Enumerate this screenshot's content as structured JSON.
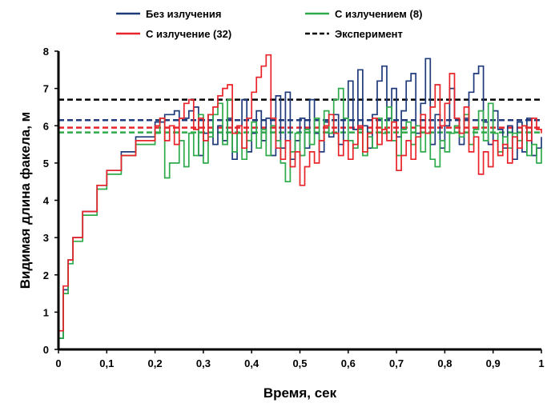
{
  "chart_data": {
    "type": "line",
    "title": "",
    "xlabel": "Время, сек",
    "ylabel": "Видимая длина факела, м",
    "xlim": [
      0,
      1
    ],
    "ylim": [
      0,
      8
    ],
    "xticks": [
      "0",
      "0,1",
      "0,2",
      "0,3",
      "0,4",
      "0,5",
      "0,6",
      "0,7",
      "0,8",
      "0,9",
      "1"
    ],
    "yticks": [
      "0",
      "1",
      "2",
      "3",
      "4",
      "5",
      "6",
      "7",
      "8"
    ],
    "grid": false,
    "legend_position": "top",
    "series": [
      {
        "name": "Без излучения",
        "color": "#1f3a7a",
        "style": "solid",
        "x": [
          0.0,
          0.01,
          0.02,
          0.03,
          0.05,
          0.08,
          0.1,
          0.13,
          0.16,
          0.2,
          0.22,
          0.24,
          0.25,
          0.27,
          0.28,
          0.29,
          0.3,
          0.31,
          0.32,
          0.33,
          0.34,
          0.35,
          0.36,
          0.37,
          0.38,
          0.39,
          0.4,
          0.41,
          0.42,
          0.43,
          0.44,
          0.45,
          0.46,
          0.47,
          0.48,
          0.49,
          0.5,
          0.51,
          0.52,
          0.53,
          0.54,
          0.55,
          0.56,
          0.57,
          0.58,
          0.59,
          0.6,
          0.61,
          0.62,
          0.63,
          0.64,
          0.65,
          0.66,
          0.67,
          0.68,
          0.69,
          0.7,
          0.71,
          0.72,
          0.73,
          0.74,
          0.75,
          0.76,
          0.77,
          0.78,
          0.79,
          0.8,
          0.81,
          0.82,
          0.83,
          0.84,
          0.85,
          0.86,
          0.87,
          0.88,
          0.89,
          0.9,
          0.91,
          0.92,
          0.93,
          0.94,
          0.95,
          0.96,
          0.97,
          0.98,
          0.99,
          1.0
        ],
        "values": [
          0.3,
          1.6,
          2.4,
          3.0,
          3.7,
          4.4,
          4.8,
          5.3,
          5.7,
          6.1,
          6.3,
          6.4,
          6.2,
          6.4,
          6.5,
          5.2,
          5.8,
          6.3,
          5.5,
          6.0,
          5.6,
          6.2,
          5.1,
          6.0,
          6.7,
          5.3,
          5.8,
          6.4,
          5.6,
          6.2,
          5.2,
          6.8,
          5.4,
          6.9,
          5.1,
          5.6,
          6.2,
          5.4,
          6.7,
          5.8,
          5.3,
          6.1,
          5.7,
          6.3,
          5.5,
          6.2,
          7.2,
          5.9,
          7.5,
          6.0,
          5.4,
          6.3,
          7.2,
          7.6,
          6.2,
          7.0,
          5.7,
          6.4,
          7.2,
          7.4,
          5.8,
          6.6,
          7.8,
          5.5,
          6.3,
          5.4,
          6.0,
          7.0,
          6.2,
          5.5,
          6.2,
          6.9,
          7.4,
          7.6,
          6.1,
          5.5,
          6.4,
          5.9,
          5.4,
          6.0,
          5.1,
          6.1,
          5.3,
          6.2,
          5.2,
          5.4,
          5.7
        ]
      },
      {
        "name": "С излучением (8)",
        "color": "#2eaa4a",
        "style": "solid",
        "x": [
          0.0,
          0.01,
          0.02,
          0.03,
          0.05,
          0.08,
          0.1,
          0.13,
          0.16,
          0.2,
          0.21,
          0.22,
          0.23,
          0.25,
          0.26,
          0.27,
          0.28,
          0.29,
          0.3,
          0.31,
          0.32,
          0.33,
          0.34,
          0.35,
          0.36,
          0.37,
          0.38,
          0.39,
          0.4,
          0.41,
          0.42,
          0.43,
          0.44,
          0.45,
          0.46,
          0.47,
          0.48,
          0.49,
          0.5,
          0.51,
          0.52,
          0.53,
          0.54,
          0.55,
          0.56,
          0.57,
          0.58,
          0.59,
          0.6,
          0.61,
          0.62,
          0.63,
          0.64,
          0.65,
          0.66,
          0.67,
          0.68,
          0.69,
          0.7,
          0.71,
          0.72,
          0.73,
          0.74,
          0.75,
          0.76,
          0.77,
          0.78,
          0.79,
          0.8,
          0.81,
          0.82,
          0.83,
          0.84,
          0.85,
          0.86,
          0.87,
          0.88,
          0.89,
          0.9,
          0.91,
          0.92,
          0.93,
          0.94,
          0.95,
          0.96,
          0.97,
          0.98,
          0.99,
          1.0
        ],
        "values": [
          0.3,
          1.5,
          2.3,
          2.9,
          3.6,
          4.3,
          4.7,
          5.2,
          5.5,
          5.8,
          6.2,
          4.6,
          5.0,
          5.6,
          4.9,
          5.8,
          5.2,
          6.3,
          5.0,
          5.7,
          6.3,
          6.6,
          5.5,
          6.7,
          5.3,
          5.8,
          5.1,
          5.6,
          6.1,
          5.4,
          5.9,
          5.2,
          6.0,
          5.6,
          5.0,
          4.5,
          5.3,
          5.8,
          5.2,
          5.9,
          5.5,
          6.2,
          5.6,
          6.4,
          5.8,
          6.7,
          7.0,
          6.2,
          5.6,
          5.4,
          5.9,
          5.2,
          5.7,
          5.4,
          6.2,
          5.8,
          6.5,
          5.6,
          5.2,
          5.9,
          6.1,
          5.5,
          6.0,
          5.3,
          5.8,
          5.1,
          4.9,
          5.6,
          5.3,
          5.8,
          6.0,
          5.7,
          6.3,
          5.5,
          5.9,
          6.4,
          5.6,
          6.6,
          5.8,
          5.3,
          5.7,
          5.4,
          5.8,
          5.6,
          6.0,
          5.2,
          5.5,
          5.0,
          5.4
        ]
      },
      {
        "name": "С излучение (32)",
        "color": "#e8232a",
        "style": "solid",
        "x": [
          0.0,
          0.01,
          0.02,
          0.03,
          0.05,
          0.08,
          0.1,
          0.13,
          0.16,
          0.2,
          0.21,
          0.22,
          0.23,
          0.24,
          0.25,
          0.26,
          0.27,
          0.28,
          0.29,
          0.3,
          0.31,
          0.32,
          0.33,
          0.34,
          0.35,
          0.36,
          0.37,
          0.38,
          0.39,
          0.4,
          0.41,
          0.42,
          0.43,
          0.44,
          0.45,
          0.46,
          0.47,
          0.48,
          0.49,
          0.5,
          0.51,
          0.52,
          0.53,
          0.54,
          0.55,
          0.56,
          0.57,
          0.58,
          0.59,
          0.6,
          0.61,
          0.62,
          0.63,
          0.64,
          0.65,
          0.66,
          0.67,
          0.68,
          0.69,
          0.7,
          0.71,
          0.72,
          0.73,
          0.74,
          0.75,
          0.76,
          0.77,
          0.78,
          0.79,
          0.8,
          0.81,
          0.82,
          0.83,
          0.84,
          0.85,
          0.86,
          0.87,
          0.88,
          0.89,
          0.9,
          0.91,
          0.92,
          0.93,
          0.94,
          0.95,
          0.96,
          0.97,
          0.98,
          0.99,
          1.0
        ],
        "values": [
          0.5,
          1.7,
          2.4,
          3.0,
          3.7,
          4.4,
          4.8,
          5.2,
          5.6,
          6.0,
          6.2,
          5.6,
          6.0,
          5.5,
          6.2,
          6.6,
          6.7,
          5.9,
          6.2,
          5.6,
          6.3,
          6.5,
          6.8,
          7.0,
          7.1,
          5.8,
          6.0,
          5.4,
          6.2,
          6.9,
          7.3,
          7.6,
          7.9,
          6.2,
          5.4,
          5.1,
          5.6,
          4.9,
          5.3,
          4.4,
          4.9,
          5.3,
          5.0,
          5.6,
          6.0,
          6.3,
          5.8,
          5.2,
          5.6,
          5.1,
          5.5,
          6.0,
          5.3,
          5.8,
          6.2,
          5.5,
          5.9,
          5.6,
          6.1,
          4.8,
          5.2,
          5.6,
          5.1,
          5.7,
          6.3,
          5.8,
          6.5,
          7.1,
          6.0,
          6.6,
          7.4,
          6.2,
          5.8,
          6.5,
          5.3,
          5.7,
          4.7,
          5.3,
          4.9,
          5.6,
          5.2,
          5.5,
          5.0,
          5.7,
          5.4,
          6.0,
          5.6,
          6.2,
          5.9,
          5.8
        ]
      }
    ],
    "reference_lines": [
      {
        "name": "Эксперимент",
        "color": "#000000",
        "style": "dashed",
        "y": 6.7,
        "in_legend": true
      },
      {
        "color": "#1f3a7a",
        "style": "dashed",
        "y": 6.15,
        "in_legend": false
      },
      {
        "color": "#e8232a",
        "style": "dashed",
        "y": 5.95,
        "in_legend": false
      },
      {
        "color": "#2eaa4a",
        "style": "dashed",
        "y": 5.82,
        "in_legend": false
      }
    ]
  }
}
